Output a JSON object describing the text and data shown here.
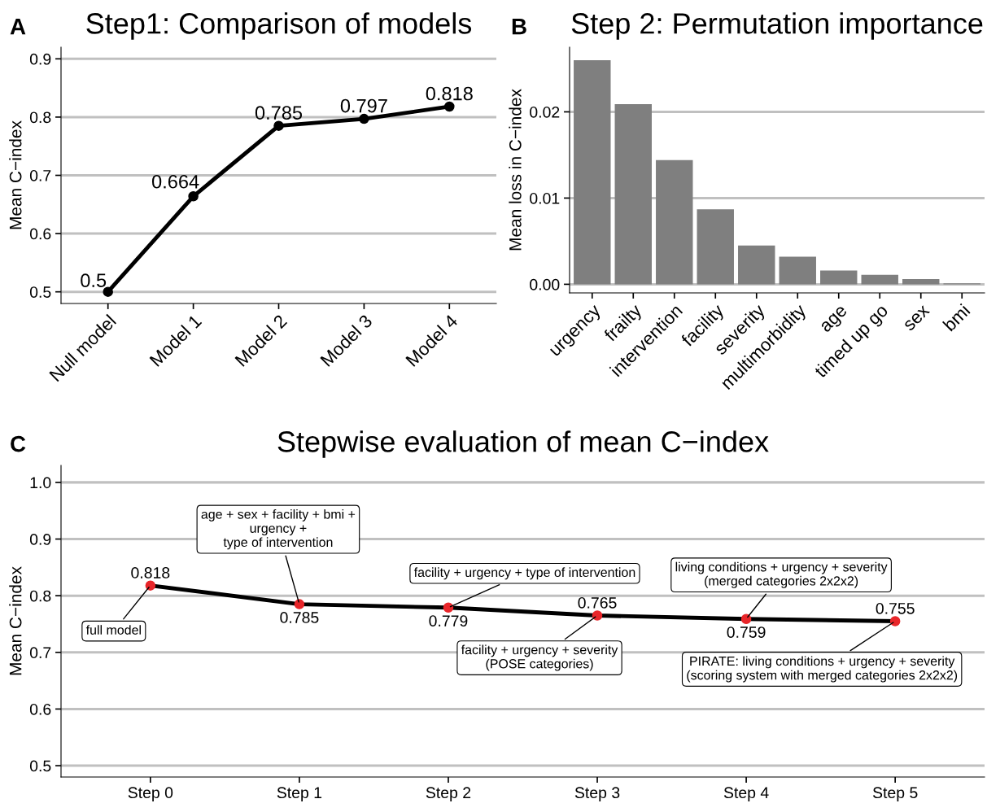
{
  "chart_data": [
    {
      "type": "line",
      "title": "Step1: Comparison of models",
      "ylabel": "Mean C−index",
      "annotations": [
        "A"
      ],
      "categories": [
        "Null model",
        "Model 1",
        "Model 2",
        "Model 3",
        "Model 4"
      ],
      "series": [
        {
          "color": "#000000",
          "values": [
            0.5,
            0.664,
            0.785,
            0.797,
            0.818
          ]
        }
      ],
      "ylim": [
        0.48,
        0.92
      ],
      "yticks": [
        0.5,
        0.6,
        0.7,
        0.8,
        0.9
      ],
      "grid": "y",
      "marker": "circle",
      "line_style": "solid",
      "data_labels": true
    },
    {
      "type": "bar",
      "title": "Step 2: Permutation importance",
      "ylabel": "Mean loss in C−index",
      "annotations": [
        "B"
      ],
      "categories": [
        "urgency",
        "frailty",
        "intervention",
        "facility",
        "severity",
        "multimorbidity",
        "age",
        "timed up go",
        "sex",
        "bmi"
      ],
      "series": [
        {
          "color": "#7f7f7f",
          "values": [
            0.026,
            0.0209,
            0.0144,
            0.0087,
            0.0045,
            0.0032,
            0.0016,
            0.0011,
            0.0006,
            0.0001
          ]
        }
      ],
      "ylim": [
        -0.001,
        0.0275
      ],
      "yticks": [
        {
          "value": 0,
          "label": "0.00"
        },
        0.01,
        0.02
      ],
      "grid": "y"
    },
    {
      "type": "line",
      "title": "Stepwise evaluation of mean C−index",
      "ylabel": "Mean C−index",
      "categories": [
        "Step 0",
        "Step 1",
        "Step 2",
        "Step 3",
        "Step 4",
        "Step 5"
      ],
      "series": [
        {
          "color": "#e8262a",
          "values": [
            0.818,
            0.785,
            0.779,
            0.765,
            0.759,
            0.755
          ]
        }
      ],
      "annotations": [
        "C",
        {
          "text": "full model",
          "x": "Step 0",
          "y": 0.818
        },
        {
          "text": "age + sex + facility + bmi +\nurgency +\ntype of intervention",
          "x": "Step 1",
          "y": 0.785
        },
        {
          "text": "facility + urgency + type of intervention",
          "x": "Step 2",
          "y": 0.779
        },
        {
          "text": "facility + urgency + severity\n(POSE categories)",
          "x": "Step 3",
          "y": 0.765
        },
        {
          "text": "living conditions + urgency + severity\n(merged categories 2x2x2)",
          "x": "Step 4",
          "y": 0.759
        },
        {
          "text": "PIRATE: living conditions + urgency + severity\n(scoring system with merged categories 2x2x2)",
          "x": "Step 5",
          "y": 0.755
        }
      ],
      "ylim": [
        0.48,
        1.03
      ],
      "yticks": [
        0.5,
        0.6,
        0.7,
        0.8,
        0.9,
        {
          "value": 1.0,
          "label": "1.0"
        }
      ],
      "grid": "y",
      "marker": "circle",
      "line_style": "solid",
      "data_labels": true
    }
  ]
}
